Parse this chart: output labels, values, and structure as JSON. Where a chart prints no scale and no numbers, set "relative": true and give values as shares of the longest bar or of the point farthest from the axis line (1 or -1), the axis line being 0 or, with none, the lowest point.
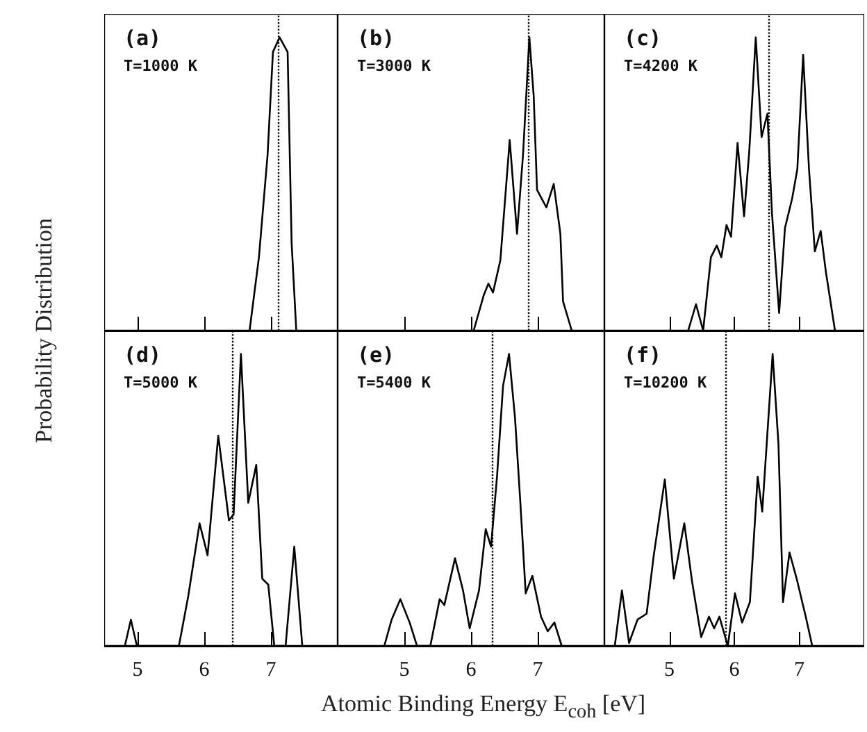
{
  "chart_data": [
    {
      "type": "line",
      "relative": true,
      "ylabel": "Probability Distribution",
      "annotations": [
        "(a)",
        "T=1000 K"
      ],
      "xlim": [
        4.5,
        8
      ],
      "xticks": [
        5,
        6,
        7
      ],
      "tick_labels": false,
      "marker": "none",
      "line_style": "solid",
      "x": [
        6.68,
        6.82,
        6.95,
        7.03,
        7.13,
        7.25,
        7.31,
        7.38
      ],
      "series": [
        {
          "color": "#000000",
          "values": [
            0,
            0.25,
            0.6,
            0.95,
            1,
            0.95,
            0.3,
            0
          ]
        }
      ],
      "ref_lines": [
        {
          "axis": "x",
          "value": 7.1,
          "color": "#000000",
          "line_style": "dotted"
        }
      ]
    },
    {
      "type": "line",
      "relative": true,
      "annotations": [
        "(b)",
        "T=3000 K"
      ],
      "xlim": [
        4,
        8
      ],
      "xticks": [
        5,
        6,
        7
      ],
      "tick_labels": false,
      "marker": "none",
      "line_style": "solid",
      "x": [
        6.04,
        6.19,
        6.26,
        6.33,
        6.44,
        6.58,
        6.69,
        6.78,
        6.875,
        6.94,
        6.99,
        7.13,
        7.24,
        7.34,
        7.38,
        7.51
      ],
      "series": [
        {
          "color": "#000000",
          "values": [
            0,
            0.12,
            0.16,
            0.13,
            0.24,
            0.65,
            0.33,
            0.6,
            1,
            0.8,
            0.48,
            0.42,
            0.5,
            0.33,
            0.1,
            0
          ]
        }
      ],
      "ref_lines": [
        {
          "axis": "x",
          "value": 6.85,
          "color": "#000000",
          "line_style": "dotted"
        }
      ]
    },
    {
      "type": "line",
      "relative": true,
      "annotations": [
        "(c)",
        "T=4200 K"
      ],
      "xlim": [
        4,
        8
      ],
      "xticks": [
        5,
        6,
        7
      ],
      "tick_labels": false,
      "marker": "none",
      "line_style": "solid",
      "x": [
        5.29,
        5.41,
        5.52,
        5.64,
        5.73,
        5.8,
        5.88,
        5.95,
        6.05,
        6.15,
        6.23,
        6.33,
        6.42,
        6.51,
        6.58,
        6.69,
        6.78,
        6.89,
        6.97,
        7.06,
        7.15,
        7.24,
        7.33,
        7.41,
        7.55
      ],
      "series": [
        {
          "color": "#000000",
          "values": [
            0,
            0.09,
            0,
            0.25,
            0.29,
            0.25,
            0.36,
            0.32,
            0.64,
            0.39,
            0.61,
            1,
            0.66,
            0.74,
            0.4,
            0.06,
            0.35,
            0.45,
            0.55,
            0.94,
            0.55,
            0.27,
            0.34,
            0.2,
            0
          ]
        }
      ],
      "ref_lines": [
        {
          "axis": "x",
          "value": 6.52,
          "color": "#000000",
          "line_style": "dotted"
        }
      ]
    },
    {
      "type": "line",
      "relative": true,
      "annotations": [
        "(d)",
        "T=5000 K"
      ],
      "xlim": [
        4.5,
        8
      ],
      "xticks": [
        5,
        6,
        7
      ],
      "tick_labels": "x",
      "marker": "none",
      "line_style": "solid",
      "x": [
        4.81,
        4.9,
        4.99,
        5.62,
        5.76,
        5.93,
        6.05,
        6.21,
        6.37,
        6.44,
        6.55,
        6.66,
        6.78,
        6.87,
        6.96,
        7.05,
        7.22,
        7.35,
        7.47
      ],
      "series": [
        {
          "color": "#000000",
          "values": [
            0,
            0.09,
            0,
            0,
            0.17,
            0.42,
            0.31,
            0.72,
            0.43,
            0.45,
            1,
            0.49,
            0.62,
            0.23,
            0.21,
            0,
            0,
            0.34,
            0
          ]
        }
      ],
      "ref_lines": [
        {
          "axis": "x",
          "value": 6.43,
          "color": "#000000",
          "line_style": "dotted"
        }
      ]
    },
    {
      "type": "line",
      "relative": true,
      "xlabel": "Atomic Binding Energy E$_{coh}$ [eV]",
      "annotations": [
        "(e)",
        "T=5400 K"
      ],
      "xlim": [
        4,
        8
      ],
      "xticks": [
        5,
        6,
        7
      ],
      "tick_labels": "x",
      "marker": "none",
      "line_style": "solid",
      "x": [
        4.7,
        4.81,
        4.94,
        5.08,
        5.19,
        5.39,
        5.53,
        5.6,
        5.76,
        5.88,
        5.98,
        6.12,
        6.22,
        6.3,
        6.39,
        6.48,
        6.57,
        6.66,
        6.74,
        6.82,
        6.92,
        7.05,
        7.15,
        7.25,
        7.36
      ],
      "series": [
        {
          "color": "#000000",
          "values": [
            0,
            0.09,
            0.16,
            0.08,
            0,
            0,
            0.16,
            0.14,
            0.3,
            0.19,
            0.06,
            0.19,
            0.4,
            0.34,
            0.58,
            0.89,
            1,
            0.78,
            0.49,
            0.18,
            0.24,
            0.1,
            0.05,
            0.08,
            0
          ]
        }
      ],
      "ref_lines": [
        {
          "axis": "x",
          "value": 6.32,
          "color": "#000000",
          "line_style": "dotted"
        }
      ]
    },
    {
      "type": "line",
      "relative": true,
      "annotations": [
        "(f)",
        "T=10200 K"
      ],
      "xlim": [
        4,
        8
      ],
      "xticks": [
        5,
        6,
        7
      ],
      "tick_labels": "x",
      "marker": "none",
      "line_style": "solid",
      "x": [
        4.16,
        4.27,
        4.38,
        4.51,
        4.65,
        4.76,
        4.93,
        5.07,
        5.23,
        5.35,
        5.49,
        5.61,
        5.69,
        5.77,
        5.9,
        6.01,
        6.12,
        6.24,
        6.36,
        6.43,
        6.59,
        6.68,
        6.75,
        6.85,
        6.96,
        7.1,
        7.2
      ],
      "series": [
        {
          "color": "#000000",
          "values": [
            0,
            0.19,
            0.01,
            0.09,
            0.11,
            0.31,
            0.57,
            0.23,
            0.42,
            0.22,
            0.03,
            0.1,
            0.06,
            0.1,
            0,
            0.18,
            0.08,
            0.15,
            0.58,
            0.46,
            1,
            0.69,
            0.15,
            0.32,
            0.23,
            0.1,
            0
          ]
        }
      ],
      "ref_lines": [
        {
          "axis": "x",
          "value": 5.87,
          "color": "#000000",
          "line_style": "dotted"
        }
      ]
    }
  ]
}
